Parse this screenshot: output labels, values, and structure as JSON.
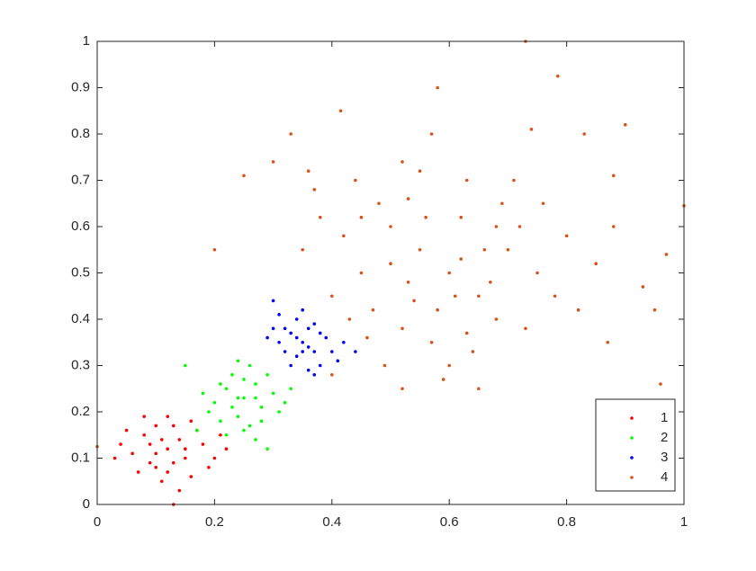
{
  "chart_data": {
    "type": "scatter",
    "xlim": [
      0,
      1
    ],
    "ylim": [
      0,
      1
    ],
    "xticks": [
      0,
      0.2,
      0.4,
      0.6,
      0.8,
      1
    ],
    "yticks": [
      0,
      0.1,
      0.2,
      0.3,
      0.4,
      0.5,
      0.6,
      0.7,
      0.8,
      0.9,
      1
    ],
    "grid": false,
    "legend": "lower right",
    "series": [
      {
        "name": "1",
        "color": "#ff0000",
        "x": [
          0.12,
          0.08,
          0.15,
          0.1,
          0.18,
          0.06,
          0.13,
          0.16,
          0.09,
          0.14,
          0.11,
          0.2,
          0.05,
          0.12,
          0.17,
          0.07,
          0.13,
          0.1,
          0.19,
          0.03,
          0.22,
          0.14,
          0.08,
          0.11,
          0.15,
          0.13,
          0.09,
          0.16,
          0.12,
          0.04,
          0.21,
          0.1
        ],
        "values": [
          0.12,
          0.15,
          0.1,
          0.08,
          0.13,
          0.11,
          0.17,
          0.06,
          0.13,
          0.14,
          0.05,
          0.1,
          0.16,
          0.19,
          0.16,
          0.07,
          0.09,
          0.11,
          0.08,
          0.1,
          0.12,
          0.03,
          0.19,
          0.14,
          0.12,
          0.0,
          0.09,
          0.18,
          0.07,
          0.13,
          0.15,
          0.17
        ]
      },
      {
        "name": "2",
        "color": "#00ff00",
        "x": [
          0.25,
          0.22,
          0.28,
          0.24,
          0.27,
          0.2,
          0.3,
          0.23,
          0.26,
          0.21,
          0.29,
          0.25,
          0.19,
          0.31,
          0.24,
          0.27,
          0.15,
          0.22,
          0.33,
          0.26,
          0.18,
          0.28,
          0.23,
          0.29,
          0.21,
          0.32,
          0.25,
          0.17,
          0.27,
          0.24
        ],
        "values": [
          0.23,
          0.25,
          0.21,
          0.19,
          0.26,
          0.22,
          0.24,
          0.28,
          0.17,
          0.18,
          0.28,
          0.27,
          0.2,
          0.2,
          0.23,
          0.14,
          0.3,
          0.15,
          0.25,
          0.3,
          0.24,
          0.18,
          0.21,
          0.12,
          0.26,
          0.22,
          0.16,
          0.16,
          0.23,
          0.31
        ]
      },
      {
        "name": "3",
        "color": "#0000ff",
        "x": [
          0.35,
          0.33,
          0.37,
          0.34,
          0.36,
          0.31,
          0.39,
          0.34,
          0.38,
          0.32,
          0.36,
          0.3,
          0.4,
          0.35,
          0.33,
          0.37,
          0.29,
          0.42,
          0.36,
          0.31,
          0.38,
          0.34,
          0.3,
          0.41,
          0.35,
          0.44,
          0.32,
          0.37
        ],
        "values": [
          0.35,
          0.37,
          0.33,
          0.32,
          0.38,
          0.35,
          0.36,
          0.4,
          0.3,
          0.33,
          0.34,
          0.38,
          0.33,
          0.42,
          0.3,
          0.39,
          0.36,
          0.35,
          0.29,
          0.41,
          0.37,
          0.36,
          0.44,
          0.31,
          0.33,
          0.33,
          0.38,
          0.28
        ]
      },
      {
        "name": "4",
        "color": "#d95319",
        "x": [
          0.6,
          0.55,
          0.65,
          0.5,
          0.7,
          0.45,
          0.58,
          0.62,
          0.53,
          0.68,
          0.48,
          0.72,
          0.57,
          0.63,
          0.42,
          0.75,
          0.52,
          0.66,
          0.4,
          0.8,
          0.55,
          0.6,
          0.47,
          0.73,
          0.38,
          0.64,
          0.5,
          0.69,
          0.44,
          0.78,
          0.56,
          0.61,
          0.35,
          0.85,
          0.59,
          0.53,
          0.67,
          0.46,
          0.71,
          0.36,
          0.82,
          0.57,
          0.62,
          0.49,
          0.76,
          0.43,
          0.88,
          0.54,
          0.65,
          0.4,
          0.3,
          0.52,
          0.58,
          0.74,
          0.83,
          0.9,
          0.88,
          0.93,
          0.95,
          0.87,
          0.52,
          0.37,
          0.45,
          0.68,
          0.63,
          0.73,
          0.785,
          0.415,
          1.0,
          0.96,
          0.0,
          0.2,
          0.25,
          0.97,
          0.33
        ],
        "values": [
          0.5,
          0.55,
          0.45,
          0.6,
          0.55,
          0.5,
          0.42,
          0.62,
          0.48,
          0.4,
          0.65,
          0.6,
          0.35,
          0.7,
          0.58,
          0.5,
          0.38,
          0.55,
          0.45,
          0.58,
          0.72,
          0.3,
          0.42,
          0.38,
          0.62,
          0.33,
          0.52,
          0.65,
          0.7,
          0.45,
          0.62,
          0.45,
          0.55,
          0.52,
          0.27,
          0.66,
          0.48,
          0.36,
          0.7,
          0.72,
          0.42,
          0.8,
          0.53,
          0.3,
          0.65,
          0.4,
          0.6,
          0.44,
          0.25,
          0.28,
          0.74,
          0.74,
          0.9,
          0.81,
          0.8,
          0.82,
          0.71,
          0.47,
          0.42,
          0.35,
          0.25,
          0.68,
          0.62,
          0.6,
          0.37,
          1.0,
          0.925,
          0.85,
          0.645,
          0.26,
          0.125,
          0.55,
          0.71,
          0.54,
          0.8
        ]
      }
    ]
  }
}
